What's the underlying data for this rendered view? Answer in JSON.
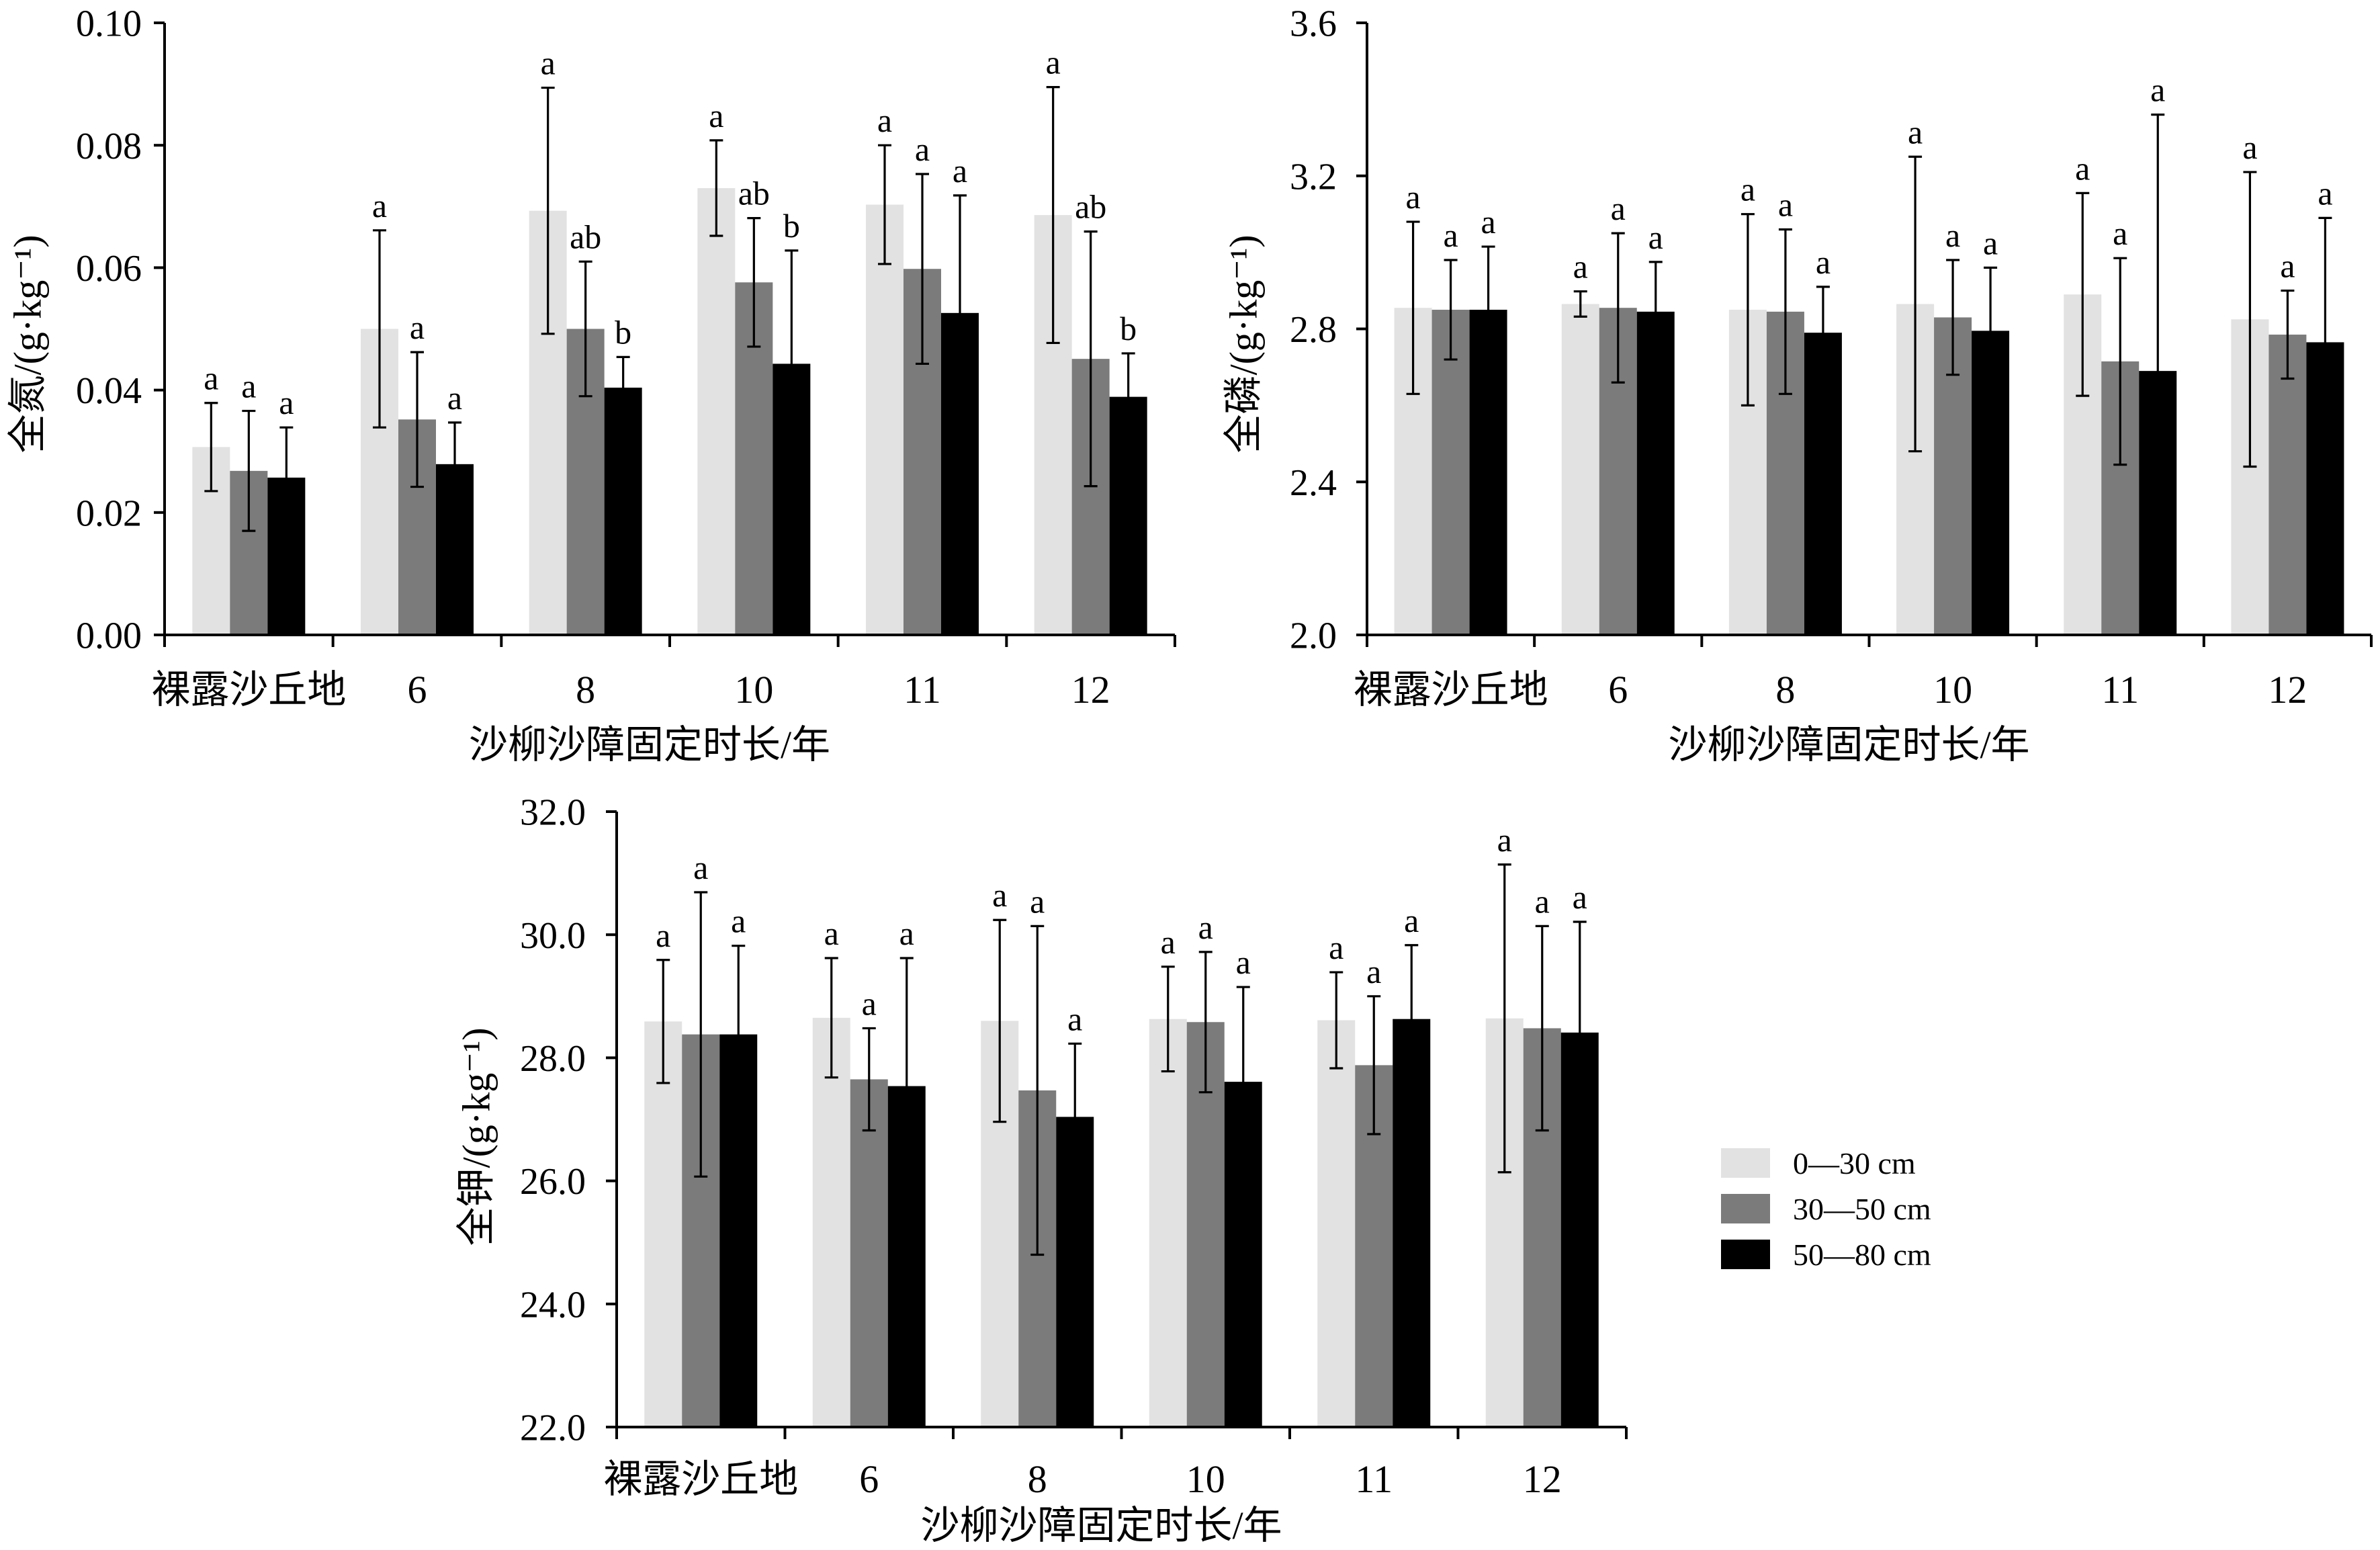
{
  "chart_data": [
    {
      "type": "bar",
      "ylabel": "全氮/(g·kg⁻¹)",
      "xlabel": "沙柳沙障固定时长/年",
      "categories": [
        "裸露沙丘地",
        "6",
        "8",
        "10",
        "11",
        "12"
      ],
      "ylim": [
        0,
        0.1
      ],
      "yticks": [
        "0.00",
        "0.02",
        "0.04",
        "0.06",
        "0.08",
        "0.10"
      ],
      "grid": false,
      "series": [
        {
          "color": "#e2e2e2",
          "values": [
            0.0307,
            0.05,
            0.0693,
            0.073,
            0.0703,
            0.0686
          ],
          "errors": [
            0.0072,
            0.0161,
            0.0201,
            0.0078,
            0.0097,
            0.0209
          ],
          "letters": [
            "a",
            "a",
            "a",
            "a",
            "a",
            "a"
          ]
        },
        {
          "color": "#7b7b7b",
          "values": [
            0.0268,
            0.0352,
            0.05,
            0.0576,
            0.0598,
            0.0451
          ],
          "errors": [
            0.0098,
            0.011,
            0.011,
            0.0105,
            0.0155,
            0.0208
          ],
          "letters": [
            "a",
            "a",
            "ab",
            "ab",
            "a",
            "ab"
          ]
        },
        {
          "color": "#000000",
          "values": [
            0.0257,
            0.0279,
            0.0404,
            0.0443,
            0.0526,
            0.0389
          ],
          "errors": [
            0.0082,
            0.0068,
            0.005,
            0.0185,
            0.0192,
            0.0071
          ],
          "letters": [
            "a",
            "a",
            "b",
            "b",
            "a",
            "b"
          ]
        }
      ]
    },
    {
      "type": "bar",
      "ylabel": "全磷/(g·kg⁻¹)",
      "xlabel": "沙柳沙障固定时长/年",
      "categories": [
        "裸露沙丘地",
        "6",
        "8",
        "10",
        "11",
        "12"
      ],
      "ylim": [
        2.0,
        3.6
      ],
      "yticks": [
        "2.0",
        "2.4",
        "2.8",
        "3.2",
        "3.6"
      ],
      "grid": false,
      "series": [
        {
          "color": "#e2e2e2",
          "values": [
            2.855,
            2.865,
            2.85,
            2.865,
            2.89,
            2.825
          ],
          "errors": [
            0.225,
            0.033,
            0.25,
            0.385,
            0.265,
            0.385
          ],
          "letters": [
            "a",
            "a",
            "a",
            "a",
            "a",
            "a"
          ]
        },
        {
          "color": "#7b7b7b",
          "values": [
            2.85,
            2.855,
            2.845,
            2.83,
            2.715,
            2.785
          ],
          "errors": [
            0.13,
            0.195,
            0.215,
            0.15,
            0.27,
            0.115
          ],
          "letters": [
            "a",
            "a",
            "a",
            "a",
            "a",
            "a"
          ]
        },
        {
          "color": "#000000",
          "values": [
            2.85,
            2.845,
            2.79,
            2.795,
            2.69,
            2.765
          ],
          "errors": [
            0.165,
            0.13,
            0.12,
            0.165,
            0.67,
            0.325
          ],
          "letters": [
            "a",
            "a",
            "a",
            "a",
            "a",
            "a"
          ]
        }
      ]
    },
    {
      "type": "bar",
      "ylabel": "全钾/(g·kg⁻¹)",
      "xlabel": "沙柳沙障固定时长/年",
      "categories": [
        "裸露沙丘地",
        "6",
        "8",
        "10",
        "11",
        "12"
      ],
      "ylim": [
        22.0,
        32.0
      ],
      "yticks": [
        "22.0",
        "24.0",
        "26.0",
        "28.0",
        "30.0",
        "32.0"
      ],
      "grid": false,
      "series": [
        {
          "color": "#e2e2e2",
          "values": [
            28.59,
            28.65,
            28.6,
            28.63,
            28.61,
            28.64
          ],
          "errors": [
            1.0,
            0.97,
            1.64,
            0.85,
            0.78,
            2.5
          ],
          "letters": [
            "a",
            "a",
            "a",
            "a",
            "a",
            "a"
          ]
        },
        {
          "color": "#7b7b7b",
          "values": [
            28.38,
            27.65,
            27.47,
            28.58,
            27.88,
            28.48
          ],
          "errors": [
            2.31,
            0.83,
            2.67,
            1.14,
            1.12,
            1.66
          ],
          "letters": [
            "a",
            "a",
            "a",
            "a",
            "a",
            "a"
          ]
        },
        {
          "color": "#000000",
          "values": [
            28.38,
            27.54,
            27.04,
            27.61,
            28.63,
            28.41
          ],
          "errors": [
            1.44,
            2.08,
            1.19,
            1.54,
            1.2,
            1.8
          ],
          "letters": [
            "a",
            "a",
            "a",
            "a",
            "a",
            "a"
          ]
        }
      ]
    }
  ],
  "legend": {
    "placement": "right",
    "items": [
      {
        "label": "0—30 cm",
        "color": "#e2e2e2"
      },
      {
        "label": "30—50 cm",
        "color": "#7b7b7b"
      },
      {
        "label": "50—80 cm",
        "color": "#000000"
      }
    ]
  }
}
